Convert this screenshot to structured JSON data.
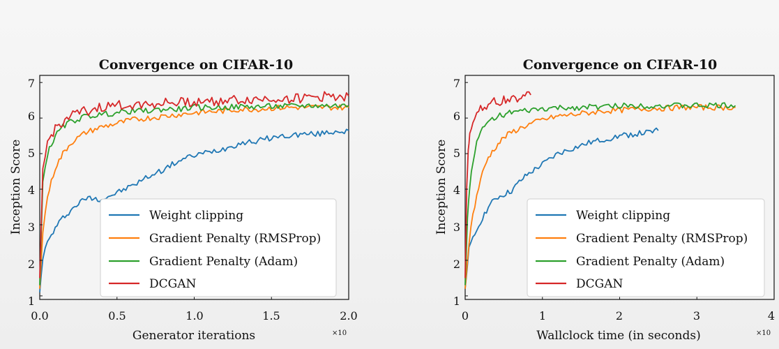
{
  "charts": [
    {
      "title": "Convergence on CIFAR-10",
      "xlabel": "Generator iterations",
      "ylabel": "Inception Score",
      "x_multiplier": "×10",
      "xticks": [
        "0.0",
        "0.5",
        "1.0",
        "1.5",
        "2.0"
      ],
      "yticks": [
        "1",
        "2",
        "3",
        "4",
        "5",
        "6",
        "7"
      ]
    },
    {
      "title": "Convergence on CIFAR-10",
      "xlabel": "Wallclock time (in seconds)",
      "ylabel": "Inception Score",
      "x_multiplier": "×10",
      "xticks": [
        "0",
        "1",
        "2",
        "3",
        "4"
      ],
      "yticks": [
        "1",
        "2",
        "3",
        "4",
        "5",
        "6",
        "7"
      ]
    }
  ],
  "chart_data": [
    {
      "type": "line",
      "title": "Convergence on CIFAR-10",
      "xlabel": "Generator iterations",
      "ylabel": "Inception Score",
      "x_multiplier": "×10",
      "xlim": [
        0,
        2.0
      ],
      "ylim": [
        0.9,
        7.2
      ],
      "grid": false,
      "legend": "lower-right",
      "series": [
        {
          "name": "Weight clipping",
          "color": "#1f77b4",
          "x": [
            0,
            0.02,
            0.05,
            0.1,
            0.15,
            0.2,
            0.25,
            0.3,
            0.35,
            0.4,
            0.5,
            0.6,
            0.7,
            0.8,
            0.9,
            1.0,
            1.1,
            1.2,
            1.3,
            1.4,
            1.5,
            1.6,
            1.7,
            1.8,
            1.9,
            2.0
          ],
          "y": [
            1.1,
            2.1,
            2.5,
            2.9,
            3.2,
            3.4,
            3.6,
            3.75,
            3.75,
            3.72,
            3.9,
            4.1,
            4.35,
            4.55,
            4.8,
            4.95,
            5.05,
            5.15,
            5.3,
            5.35,
            5.45,
            5.5,
            5.55,
            5.55,
            5.62,
            5.65
          ]
        },
        {
          "name": "Gradient Penalty (RMSProp)",
          "color": "#ff7f0e",
          "x": [
            0,
            0.02,
            0.05,
            0.1,
            0.15,
            0.2,
            0.3,
            0.4,
            0.5,
            0.6,
            0.7,
            0.8,
            0.9,
            1.0,
            1.1,
            1.2,
            1.3,
            1.4,
            1.5,
            1.6,
            1.7,
            1.8,
            1.9,
            2.0
          ],
          "y": [
            1.2,
            2.8,
            3.8,
            4.6,
            5.0,
            5.3,
            5.6,
            5.75,
            5.85,
            5.95,
            6.0,
            6.05,
            6.1,
            6.15,
            6.18,
            6.2,
            6.25,
            6.25,
            6.28,
            6.3,
            6.3,
            6.3,
            6.3,
            6.3
          ]
        },
        {
          "name": "Gradient Penalty (Adam)",
          "color": "#2ca02c",
          "x": [
            0,
            0.02,
            0.05,
            0.1,
            0.15,
            0.2,
            0.3,
            0.4,
            0.5,
            0.6,
            0.7,
            0.8,
            0.9,
            1.0,
            1.1,
            1.2,
            1.3,
            1.4,
            1.5,
            1.6,
            1.7,
            1.8,
            1.9,
            2.0
          ],
          "y": [
            1.3,
            4.2,
            5.0,
            5.5,
            5.75,
            5.9,
            6.05,
            6.1,
            6.15,
            6.2,
            6.2,
            6.25,
            6.25,
            6.3,
            6.3,
            6.3,
            6.32,
            6.32,
            6.33,
            6.33,
            6.35,
            6.35,
            6.35,
            6.35
          ]
        },
        {
          "name": "DCGAN",
          "color": "#d62728",
          "x": [
            0,
            0.02,
            0.05,
            0.1,
            0.15,
            0.2,
            0.3,
            0.4,
            0.5,
            0.6,
            0.7,
            0.8,
            0.9,
            1.0,
            1.1,
            1.2,
            1.3,
            1.4,
            1.5,
            1.6,
            1.7,
            1.8,
            1.9,
            2.0
          ],
          "y": [
            1.5,
            4.5,
            5.3,
            5.7,
            5.9,
            6.05,
            6.2,
            6.3,
            6.35,
            6.38,
            6.4,
            6.42,
            6.45,
            6.45,
            6.48,
            6.5,
            6.5,
            6.52,
            6.55,
            6.55,
            6.55,
            6.6,
            6.62,
            6.62
          ]
        }
      ]
    },
    {
      "type": "line",
      "title": "Convergence on CIFAR-10",
      "xlabel": "Wallclock time (in seconds)",
      "ylabel": "Inception Score",
      "x_multiplier": "×10",
      "xlim": [
        0,
        4
      ],
      "ylim": [
        0.9,
        7.2
      ],
      "grid": false,
      "legend": "lower-right",
      "series": [
        {
          "name": "Weight clipping",
          "color": "#1f77b4",
          "x": [
            0,
            0.05,
            0.1,
            0.2,
            0.3,
            0.4,
            0.5,
            0.6,
            0.7,
            0.8,
            0.9,
            1.0,
            1.2,
            1.4,
            1.6,
            1.8,
            2.0,
            2.2,
            2.4,
            2.5
          ],
          "y": [
            1.2,
            2.3,
            2.6,
            3.1,
            3.5,
            3.75,
            3.85,
            3.95,
            4.2,
            4.4,
            4.55,
            4.7,
            5.0,
            5.15,
            5.3,
            5.4,
            5.5,
            5.55,
            5.6,
            5.65
          ]
        },
        {
          "name": "Gradient Penalty (RMSProp)",
          "color": "#ff7f0e",
          "x": [
            0,
            0.05,
            0.1,
            0.2,
            0.3,
            0.4,
            0.5,
            0.6,
            0.8,
            1.0,
            1.2,
            1.4,
            1.6,
            1.8,
            2.0,
            2.2,
            2.4,
            2.6,
            2.8,
            3.0,
            3.2,
            3.4,
            3.5
          ],
          "y": [
            1.2,
            2.5,
            3.3,
            4.3,
            4.9,
            5.2,
            5.45,
            5.6,
            5.8,
            5.95,
            6.05,
            6.1,
            6.15,
            6.2,
            6.22,
            6.25,
            6.27,
            6.28,
            6.3,
            6.3,
            6.3,
            6.3,
            6.3
          ]
        },
        {
          "name": "Gradient Penalty (Adam)",
          "color": "#2ca02c",
          "x": [
            0,
            0.03,
            0.06,
            0.1,
            0.15,
            0.2,
            0.3,
            0.4,
            0.5,
            0.6,
            0.8,
            1.0,
            1.2,
            1.5,
            1.8,
            2.0,
            2.3,
            2.6,
            3.0,
            3.3,
            3.5
          ],
          "y": [
            1.3,
            3.2,
            4.1,
            4.8,
            5.3,
            5.6,
            5.9,
            6.05,
            6.1,
            6.15,
            6.2,
            6.25,
            6.28,
            6.3,
            6.32,
            6.35,
            6.35,
            6.35,
            6.35,
            6.35,
            6.35
          ]
        },
        {
          "name": "DCGAN",
          "color": "#d62728",
          "x": [
            0,
            0.02,
            0.04,
            0.06,
            0.1,
            0.15,
            0.2,
            0.3,
            0.4,
            0.5,
            0.6,
            0.7,
            0.75,
            0.8,
            0.85
          ],
          "y": [
            1.5,
            4.0,
            5.0,
            5.6,
            5.95,
            6.15,
            6.3,
            6.4,
            6.45,
            6.5,
            6.55,
            6.6,
            6.62,
            6.62,
            6.65
          ]
        }
      ]
    }
  ]
}
